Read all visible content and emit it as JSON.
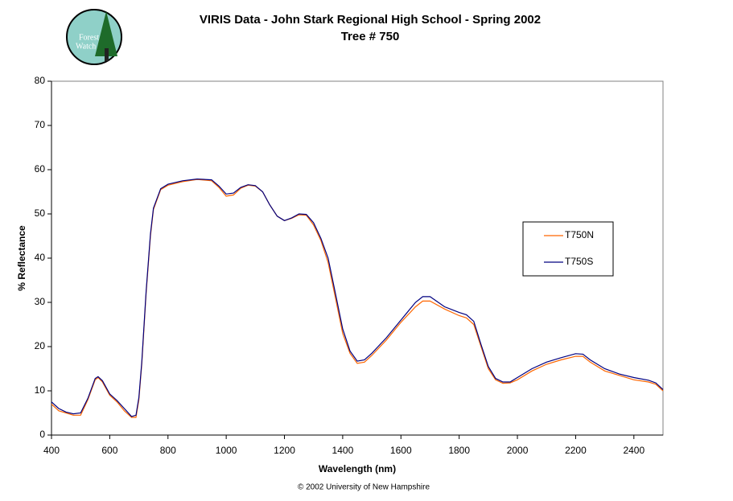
{
  "logo": [
    "Forest",
    "Watch"
  ],
  "footer": "© 2002 University of New Hampshire",
  "chart_data": {
    "type": "line",
    "title": "VIRIS Data - John Stark Regional High School - Spring 2002",
    "subtitle": "Tree # 750",
    "xlabel": "Wavelength (nm)",
    "ylabel": "% Reflectance",
    "x": [
      400,
      425,
      450,
      475,
      500,
      525,
      550,
      560,
      575,
      600,
      625,
      650,
      675,
      690,
      700,
      710,
      725,
      740,
      750,
      775,
      800,
      850,
      900,
      950,
      975,
      1000,
      1025,
      1050,
      1075,
      1100,
      1125,
      1150,
      1175,
      1200,
      1225,
      1250,
      1275,
      1300,
      1325,
      1350,
      1375,
      1400,
      1425,
      1450,
      1475,
      1500,
      1550,
      1600,
      1650,
      1675,
      1700,
      1750,
      1800,
      1825,
      1850,
      1875,
      1900,
      1925,
      1950,
      1975,
      2000,
      2050,
      2100,
      2150,
      2200,
      2225,
      2250,
      2300,
      2350,
      2400,
      2450,
      2475,
      2500
    ],
    "series": [
      {
        "name": "T750N",
        "color": "#ff6600",
        "values": [
          7,
          5.5,
          5,
          4.5,
          4.5,
          8,
          12.5,
          13,
          12,
          9,
          7.5,
          5.5,
          4,
          4,
          8,
          16,
          32,
          45,
          51,
          55.5,
          56.5,
          57.3,
          57.8,
          57.5,
          56,
          54,
          54.3,
          55.8,
          56.5,
          56.3,
          55,
          52,
          49.5,
          48.5,
          49,
          49.8,
          49.7,
          47.5,
          44,
          39,
          31,
          23,
          18.5,
          16.2,
          16.5,
          18,
          21.5,
          25.5,
          29,
          30.3,
          30.3,
          28.5,
          27,
          26.5,
          25,
          20,
          15,
          12.5,
          11.7,
          11.8,
          12.5,
          14.5,
          16,
          17,
          17.8,
          17.8,
          16.5,
          14.5,
          13.5,
          12.5,
          12,
          11.5,
          10
        ]
      },
      {
        "name": "T750S",
        "color": "#000080",
        "values": [
          7.5,
          6,
          5.2,
          4.8,
          5,
          8.3,
          12.8,
          13.2,
          12.3,
          9.3,
          7.8,
          6,
          4.2,
          4.5,
          8.5,
          16.5,
          32.5,
          45.5,
          51.3,
          55.7,
          56.7,
          57.5,
          57.9,
          57.7,
          56.3,
          54.5,
          54.7,
          56,
          56.6,
          56.4,
          55,
          52,
          49.5,
          48.5,
          49.1,
          50,
          49.9,
          48,
          44.5,
          40,
          32,
          24,
          19,
          16.7,
          17,
          18.5,
          22,
          26,
          30,
          31.3,
          31.3,
          29,
          27.7,
          27.2,
          25.7,
          20.5,
          15.5,
          12.8,
          12,
          12,
          13,
          15,
          16.5,
          17.5,
          18.4,
          18.3,
          17,
          15,
          13.8,
          13,
          12.4,
          11.8,
          10.3
        ]
      }
    ],
    "xlim": [
      400,
      2500
    ],
    "xticks": [
      400,
      600,
      800,
      1000,
      1200,
      1400,
      1600,
      1800,
      2000,
      2200,
      2400
    ],
    "ylim": [
      0,
      80
    ],
    "yticks": [
      0,
      10,
      20,
      30,
      40,
      50,
      60,
      70,
      80
    ],
    "grid": false,
    "legend": "right"
  }
}
